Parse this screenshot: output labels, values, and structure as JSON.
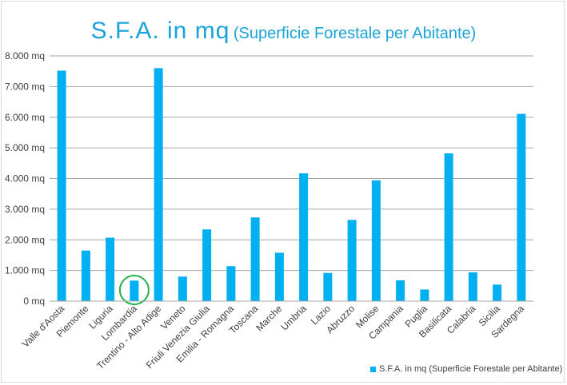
{
  "chart_data": {
    "type": "bar",
    "title": "S.F.A. in mq",
    "subtitle": "(Superficie Forestale per Abitante)",
    "categories": [
      "Valle d'Aosta",
      "Piemonte",
      "Liguria",
      "Lombardia",
      "Trentino - Alto Adige",
      "Veneto",
      "Friuli Venezia Giulia",
      "Emilia - Romagna",
      "Toscana",
      "Marche",
      "Umbria",
      "Lazio",
      "Abruzzo",
      "Molise",
      "Campania",
      "Puglia",
      "Basilicata",
      "Calabria",
      "Sicilia",
      "Sardegna"
    ],
    "series": [
      {
        "name": "S.F.A. in mq (Superficie Forestale per Abitante)",
        "color": "#00b0f0",
        "values": [
          7520,
          1650,
          2070,
          670,
          7600,
          800,
          2340,
          1140,
          2730,
          1580,
          4170,
          920,
          2650,
          3940,
          680,
          380,
          4820,
          940,
          540,
          6110
        ]
      }
    ],
    "y_ticks": [
      "0 mq",
      "1.000 mq",
      "2.000 mq",
      "3.000 mq",
      "4.000 mq",
      "5.000 mq",
      "6.000 mq",
      "7.000 mq",
      "8.000 mq"
    ],
    "ylim": [
      0,
      8000
    ],
    "grid": true,
    "legend_position": "bottom-right",
    "highlight": {
      "category": "Lombardia",
      "shape": "circle",
      "color": "#22b14c"
    }
  }
}
